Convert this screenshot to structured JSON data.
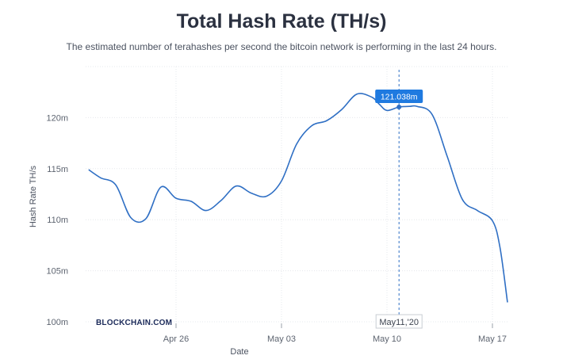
{
  "chart_data": {
    "type": "line",
    "title": "Total Hash Rate (TH/s)",
    "subtitle": "The estimated number of terahashes per second the bitcoin network is performing in the last 24 hours.",
    "xlabel": "Date",
    "ylabel": "Hash Rate TH/s",
    "yticks": [
      "100m",
      "105m",
      "110m",
      "115m",
      "120m"
    ],
    "ylim": [
      100,
      125
    ],
    "xticks": [
      {
        "label": "Apr 26",
        "day": 26
      },
      {
        "label": "May 03",
        "day": 33
      },
      {
        "label": "May 10",
        "day": 40
      },
      {
        "label": "May 17",
        "day": 47
      }
    ],
    "xlim": [
      20,
      48
    ],
    "grid": true,
    "line_color": "#2f6fc4",
    "series": [
      {
        "x": [
          20.2,
          21,
          22,
          23,
          24,
          25,
          26,
          27,
          28,
          29,
          30,
          31,
          32,
          33,
          34,
          35,
          36,
          37,
          38,
          39,
          39.5,
          40,
          40.8,
          41.5,
          42,
          43,
          44,
          45,
          46,
          47,
          47.5,
          48
        ],
        "y": [
          114.9,
          114.1,
          113.4,
          110.2,
          110.1,
          113.2,
          112.1,
          111.8,
          110.9,
          111.9,
          113.3,
          112.6,
          112.3,
          113.8,
          117.4,
          119.2,
          119.7,
          120.8,
          122.3,
          122.0,
          121.3,
          120.7,
          121.04,
          121.1,
          121.1,
          120.3,
          116.2,
          112.0,
          110.9,
          109.9,
          107.3,
          101.9
        ]
      }
    ],
    "crosshair": {
      "x_label": "May11,'20",
      "value_label": "121.038m",
      "day": 40.8,
      "value": 121.04
    }
  },
  "brand": "BLOCKCHAIN.COM"
}
